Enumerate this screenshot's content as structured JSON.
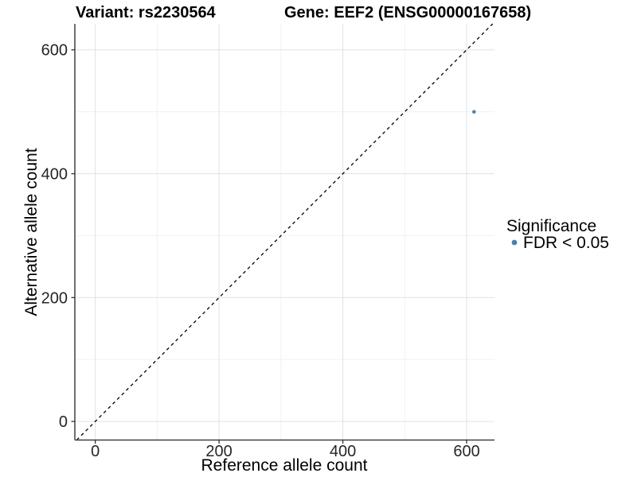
{
  "chart_data": {
    "type": "scatter",
    "titles": {
      "left": "Variant: rs2230564",
      "right": "Gene: EEF2 (ENSG00000167658)"
    },
    "xlabel": "Reference allele count",
    "ylabel": "Alternative allele count",
    "xlim": [
      -33,
      645
    ],
    "ylim": [
      -30,
      642
    ],
    "x_major_ticks": [
      0,
      200,
      400,
      600
    ],
    "y_major_ticks": [
      0,
      200,
      400,
      600
    ],
    "x_minor_gridlines": [
      100,
      300,
      500
    ],
    "y_minor_gridlines": [
      100,
      300,
      500
    ],
    "grid": "major+minor",
    "identity_line": {
      "equation": "y = x",
      "style": "dashed",
      "color": "#000000"
    },
    "series": [
      {
        "name": "FDR < 0.05",
        "color": "#4682b4",
        "point_radius": 2.3,
        "points": [
          [
            612,
            500
          ]
        ]
      }
    ],
    "legend": {
      "title": "Significance",
      "position": "right",
      "entries": [
        {
          "label": "FDR < 0.05",
          "color": "#4682b4"
        }
      ]
    }
  }
}
